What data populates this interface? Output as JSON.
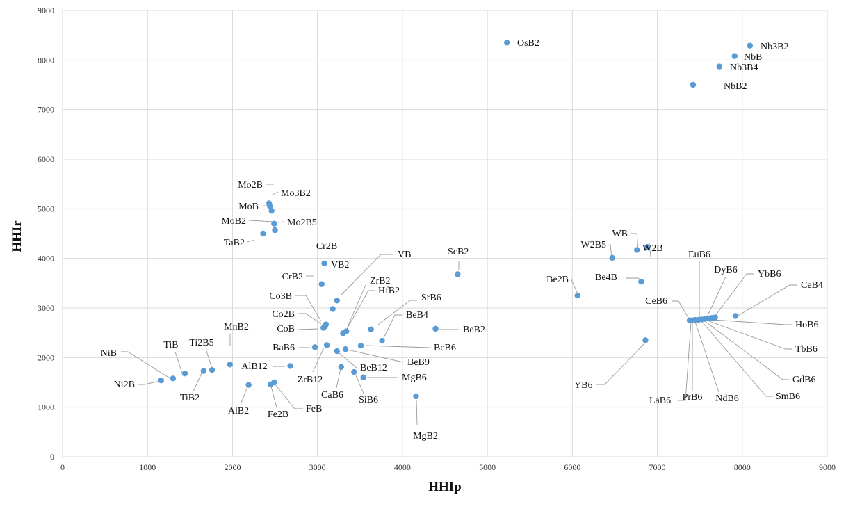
{
  "chart_data": {
    "type": "scatter",
    "xlabel": "HHIp",
    "ylabel": "HHIr",
    "xlim": [
      0,
      9000
    ],
    "ylim": [
      0,
      9000
    ],
    "xticks": [
      "0",
      "1000",
      "2000",
      "3000",
      "4000",
      "5000",
      "6000",
      "7000",
      "8000",
      "9000"
    ],
    "yticks": [
      "0",
      "1000",
      "2000",
      "3000",
      "4000",
      "5000",
      "6000",
      "7000",
      "8000",
      "9000"
    ],
    "grid": true,
    "marker_color": "#5b9bd5",
    "points": [
      {
        "label": "OsB2",
        "x": 5230,
        "y": 8350
      },
      {
        "label": "Nb3B2",
        "x": 8090,
        "y": 8290
      },
      {
        "label": "NbB",
        "x": 7910,
        "y": 8080
      },
      {
        "label": "Nb3B4",
        "x": 7730,
        "y": 7870
      },
      {
        "label": "NbB2",
        "x": 7420,
        "y": 7500
      },
      {
        "label": "Mo2B",
        "x": 2430,
        "y": 5110
      },
      {
        "label": "Mo3B2",
        "x": 2440,
        "y": 5050
      },
      {
        "label": "MoB",
        "x": 2460,
        "y": 4960
      },
      {
        "label": "MoB2",
        "x": 2490,
        "y": 4700
      },
      {
        "label": "Mo2B5",
        "x": 2500,
        "y": 4570
      },
      {
        "label": "TaB2",
        "x": 2360,
        "y": 4500
      },
      {
        "label": "Cr2B",
        "x": 3080,
        "y": 3900
      },
      {
        "label": "VB",
        "x": 3230,
        "y": 3150
      },
      {
        "label": "VB2",
        "x": 3180,
        "y": 2980
      },
      {
        "label": "CrB2",
        "x": 3050,
        "y": 3480
      },
      {
        "label": "ZrB2",
        "x": 3340,
        "y": 2530
      },
      {
        "label": "HfB2",
        "x": 3300,
        "y": 2490
      },
      {
        "label": "Co3B",
        "x": 3100,
        "y": 2670
      },
      {
        "label": "Co2B",
        "x": 3090,
        "y": 2630
      },
      {
        "label": "CoB",
        "x": 3070,
        "y": 2600
      },
      {
        "label": "SrB6",
        "x": 3630,
        "y": 2570
      },
      {
        "label": "ScB2",
        "x": 4650,
        "y": 3680
      },
      {
        "label": "BeB4",
        "x": 3760,
        "y": 2340
      },
      {
        "label": "BeB2",
        "x": 4390,
        "y": 2580
      },
      {
        "label": "BeB6",
        "x": 3510,
        "y": 2240
      },
      {
        "label": "BeB9",
        "x": 3330,
        "y": 2170
      },
      {
        "label": "BaB6",
        "x": 2970,
        "y": 2210
      },
      {
        "label": "ZrB12",
        "x": 3110,
        "y": 2250
      },
      {
        "label": "BeB12",
        "x": 3230,
        "y": 2130
      },
      {
        "label": "MnB2",
        "x": 1970,
        "y": 1860
      },
      {
        "label": "AlB12",
        "x": 2680,
        "y": 1830
      },
      {
        "label": "CaB6",
        "x": 3280,
        "y": 1810
      },
      {
        "label": "MgB6",
        "x": 3540,
        "y": 1600
      },
      {
        "label": "SiB6",
        "x": 3430,
        "y": 1710
      },
      {
        "label": "MgB2",
        "x": 4160,
        "y": 1220
      },
      {
        "label": "NiB",
        "x": 1300,
        "y": 1580
      },
      {
        "label": "TiB",
        "x": 1440,
        "y": 1680
      },
      {
        "label": "Ti2B5",
        "x": 1760,
        "y": 1750
      },
      {
        "label": "TiB2",
        "x": 1660,
        "y": 1730
      },
      {
        "label": "Ni2B",
        "x": 1160,
        "y": 1540
      },
      {
        "label": "AlB2",
        "x": 2190,
        "y": 1450
      },
      {
        "label": "Fe2B",
        "x": 2450,
        "y": 1460
      },
      {
        "label": "FeB",
        "x": 2490,
        "y": 1500
      },
      {
        "label": "W2B5",
        "x": 6470,
        "y": 4010
      },
      {
        "label": "WB",
        "x": 6760,
        "y": 4170
      },
      {
        "label": "W2B",
        "x": 6880,
        "y": 4230
      },
      {
        "label": "Be2B",
        "x": 6060,
        "y": 3250
      },
      {
        "label": "Be4B",
        "x": 6810,
        "y": 3530
      },
      {
        "label": "YB6",
        "x": 6860,
        "y": 2350
      },
      {
        "label": "CeB6",
        "x": 7380,
        "y": 2750
      },
      {
        "label": "LaB6",
        "x": 7400,
        "y": 2750
      },
      {
        "label": "PrB6",
        "x": 7440,
        "y": 2760
      },
      {
        "label": "EuB6",
        "x": 7480,
        "y": 2760
      },
      {
        "label": "NdB6",
        "x": 7520,
        "y": 2770
      },
      {
        "label": "SmB6",
        "x": 7560,
        "y": 2780
      },
      {
        "label": "GdB6",
        "x": 7600,
        "y": 2790
      },
      {
        "label": "TbB6",
        "x": 7640,
        "y": 2800
      },
      {
        "label": "DyB6",
        "x": 7670,
        "y": 2800
      },
      {
        "label": "YbB6",
        "x": 7680,
        "y": 2810
      },
      {
        "label": "HoB6",
        "x": 7920,
        "y": 2840
      },
      {
        "label": "CeB4",
        "x": 7920,
        "y": 2840
      }
    ]
  }
}
